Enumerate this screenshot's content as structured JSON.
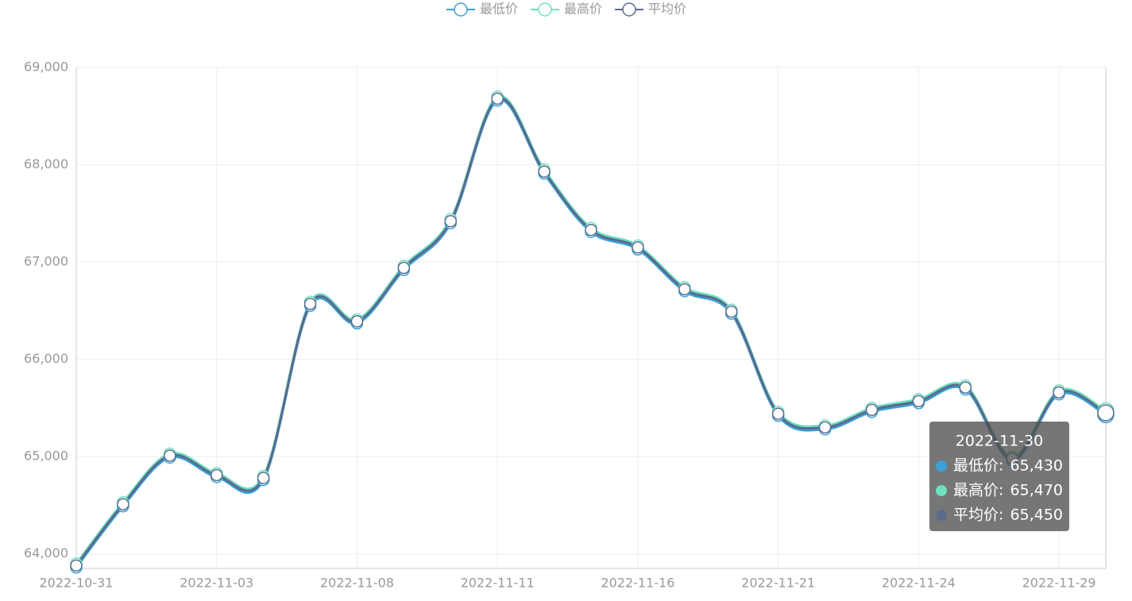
{
  "chart_data": {
    "type": "line",
    "categories": [
      "2022-10-31",
      null,
      null,
      "2022-11-03",
      null,
      null,
      "2022-11-08",
      null,
      null,
      "2022-11-11",
      null,
      null,
      "2022-11-16",
      null,
      null,
      "2022-11-21",
      null,
      null,
      "2022-11-24",
      null,
      null,
      "2022-11-29",
      "2022-11-30"
    ],
    "series": [
      {
        "name": "最低价",
        "color": "#3ba0d8",
        "values": [
          63860,
          64490,
          64990,
          64790,
          64760,
          66550,
          66370,
          66920,
          67400,
          68660,
          67910,
          67310,
          67130,
          66700,
          66470,
          65420,
          65280,
          65460,
          65550,
          65690,
          64960,
          65640,
          65430
        ],
        "value_labels": [
          null,
          null,
          null,
          null,
          null,
          null,
          null,
          null,
          null,
          null,
          null,
          null,
          null,
          null,
          null,
          null,
          null,
          null,
          null,
          null,
          null,
          null,
          "65,430"
        ]
      },
      {
        "name": "最高价",
        "color": "#6ee0c0",
        "values": [
          63900,
          64530,
          65030,
          64830,
          64800,
          66590,
          66410,
          66960,
          67440,
          68700,
          67950,
          67350,
          67170,
          66740,
          66510,
          65460,
          65320,
          65500,
          65590,
          65730,
          65000,
          65680,
          65470
        ],
        "value_labels": [
          null,
          null,
          null,
          null,
          null,
          null,
          null,
          null,
          null,
          null,
          null,
          null,
          null,
          null,
          null,
          null,
          null,
          null,
          null,
          null,
          null,
          null,
          "65,470"
        ]
      },
      {
        "name": "平均价",
        "color": "#5a6b8c",
        "values": [
          63880,
          64510,
          65010,
          64810,
          64780,
          66570,
          66390,
          66940,
          67420,
          68680,
          67930,
          67330,
          67150,
          66720,
          66490,
          65440,
          65300,
          65480,
          65570,
          65710,
          64980,
          65660,
          65450
        ],
        "value_labels": [
          null,
          null,
          null,
          null,
          null,
          null,
          null,
          null,
          null,
          null,
          null,
          null,
          null,
          null,
          null,
          null,
          null,
          null,
          null,
          null,
          null,
          null,
          "65,450"
        ]
      }
    ],
    "ylim": [
      63850,
      69000
    ],
    "yticks": [
      {
        "value": 64000,
        "label": "64,000"
      },
      {
        "value": 65000,
        "label": "65,000"
      },
      {
        "value": 66000,
        "label": "66,000"
      },
      {
        "value": 67000,
        "label": "67,000"
      },
      {
        "value": 68000,
        "label": "68,000"
      },
      {
        "value": 69000,
        "label": "69,000"
      }
    ],
    "grid": true,
    "legend": "top",
    "tooltip_index": 22
  }
}
